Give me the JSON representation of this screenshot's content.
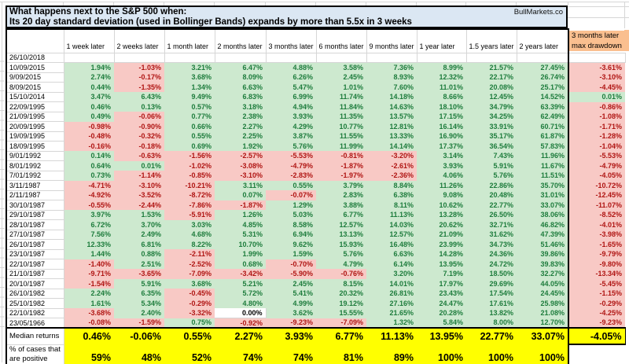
{
  "title": {
    "line1": "What happens next to the S&P 500 when:",
    "line2": "Its 20 day standard deviation (used in Bollinger Bands) expands by more than 5.5x in 3 weeks",
    "brand": "BullMarkets.co"
  },
  "table": {
    "columns": [
      "1 week later",
      "2 weeks later",
      "1 month later",
      "2 months later",
      "3 months later",
      "6 months later",
      "9 months later",
      "1 year later",
      "1.5 years later",
      "2 years later"
    ],
    "drawdown_header_lines": [
      "3 months later",
      "max drawdown"
    ],
    "rows": [
      {
        "date": "26/10/2018",
        "values": [
          "",
          "",
          "",
          "",
          "",
          "",
          "",
          "",
          "",
          ""
        ],
        "drawdown": ""
      },
      {
        "date": "10/09/2015",
        "values": [
          "1.94%",
          "-1.03%",
          "3.21%",
          "6.47%",
          "4.88%",
          "3.58%",
          "7.36%",
          "8.99%",
          "21.57%",
          "27.45%"
        ],
        "drawdown": "-3.61%"
      },
      {
        "date": "9/09/2015",
        "values": [
          "2.74%",
          "-0.17%",
          "3.68%",
          "8.09%",
          "6.26%",
          "2.45%",
          "8.93%",
          "12.32%",
          "22.17%",
          "26.74%"
        ],
        "drawdown": "-3.10%"
      },
      {
        "date": "8/09/2015",
        "values": [
          "0.44%",
          "-1.35%",
          "1.34%",
          "6.63%",
          "5.47%",
          "1.01%",
          "7.60%",
          "11.01%",
          "20.08%",
          "25.17%"
        ],
        "drawdown": "-4.45%"
      },
      {
        "date": "15/10/2014",
        "values": [
          "3.47%",
          "6.43%",
          "9.49%",
          "6.83%",
          "6.99%",
          "11.74%",
          "14.18%",
          "8.66%",
          "12.45%",
          "14.52%"
        ],
        "drawdown": "0.01%"
      },
      {
        "date": "22/09/1995",
        "values": [
          "0.46%",
          "0.13%",
          "0.57%",
          "3.18%",
          "4.94%",
          "11.84%",
          "14.63%",
          "18.10%",
          "34.79%",
          "63.39%"
        ],
        "drawdown": "-0.86%"
      },
      {
        "date": "21/09/1995",
        "values": [
          "0.49%",
          "-0.06%",
          "0.77%",
          "2.38%",
          "3.93%",
          "11.35%",
          "13.57%",
          "17.15%",
          "34.25%",
          "62.49%"
        ],
        "drawdown": "-1.08%"
      },
      {
        "date": "20/09/1995",
        "values": [
          "-0.98%",
          "-0.90%",
          "0.66%",
          "2.27%",
          "4.29%",
          "10.77%",
          "12.81%",
          "16.14%",
          "33.91%",
          "60.71%"
        ],
        "drawdown": "-1.71%"
      },
      {
        "date": "19/09/1995",
        "values": [
          "-0.48%",
          "-0.32%",
          "0.55%",
          "2.25%",
          "3.87%",
          "11.55%",
          "13.33%",
          "16.90%",
          "35.17%",
          "61.87%"
        ],
        "drawdown": "-1.28%"
      },
      {
        "date": "18/09/1995",
        "values": [
          "-0.16%",
          "-0.18%",
          "0.69%",
          "1.92%",
          "5.76%",
          "11.99%",
          "14.14%",
          "17.37%",
          "36.54%",
          "57.83%"
        ],
        "drawdown": "-1.04%"
      },
      {
        "date": "9/01/1992",
        "values": [
          "0.14%",
          "-0.63%",
          "-1.56%",
          "-2.57%",
          "-5.53%",
          "-0.81%",
          "-3.20%",
          "3.14%",
          "7.43%",
          "11.96%"
        ],
        "drawdown": "-5.53%"
      },
      {
        "date": "8/01/1992",
        "values": [
          "0.64%",
          "0.01%",
          "-1.02%",
          "-3.08%",
          "-4.79%",
          "-1.87%",
          "-2.61%",
          "3.93%",
          "5.91%",
          "11.67%"
        ],
        "drawdown": "-4.79%"
      },
      {
        "date": "7/01/1992",
        "values": [
          "0.73%",
          "-1.14%",
          "-0.85%",
          "-3.10%",
          "-2.83%",
          "-1.97%",
          "-2.36%",
          "4.06%",
          "5.76%",
          "11.51%"
        ],
        "drawdown": "-4.05%"
      },
      {
        "date": "3/11/1987",
        "values": [
          "-4.71%",
          "-3.10%",
          "-10.21%",
          "3.11%",
          "0.55%",
          "3.79%",
          "8.84%",
          "11.26%",
          "22.86%",
          "35.70%"
        ],
        "drawdown": "-10.72%"
      },
      {
        "date": "2/11/1987",
        "values": [
          "-4.92%",
          "-3.52%",
          "-8.72%",
          "0.07%",
          "-0.07%",
          "2.83%",
          "6.38%",
          "9.08%",
          "20.48%",
          "31.01%"
        ],
        "drawdown": "-12.45%"
      },
      {
        "date": "30/10/1987",
        "values": [
          "-0.55%",
          "-2.44%",
          "-7.86%",
          "-1.87%",
          "1.29%",
          "3.88%",
          "8.11%",
          "10.62%",
          "22.77%",
          "33.07%"
        ],
        "drawdown": "-11.07%"
      },
      {
        "date": "29/10/1987",
        "values": [
          "3.97%",
          "1.53%",
          "-5.91%",
          "1.26%",
          "5.03%",
          "6.77%",
          "11.13%",
          "13.28%",
          "26.50%",
          "38.06%"
        ],
        "drawdown": "-8.52%"
      },
      {
        "date": "28/10/1987",
        "values": [
          "6.72%",
          "3.70%",
          "3.03%",
          "4.85%",
          "8.58%",
          "12.57%",
          "14.03%",
          "20.62%",
          "32.71%",
          "46.82%"
        ],
        "drawdown": "-4.01%"
      },
      {
        "date": "27/10/1987",
        "values": [
          "7.56%",
          "2.49%",
          "4.68%",
          "5.31%",
          "6.94%",
          "13.13%",
          "12.57%",
          "21.09%",
          "31.62%",
          "47.39%"
        ],
        "drawdown": "-3.98%"
      },
      {
        "date": "26/10/1987",
        "values": [
          "12.33%",
          "6.81%",
          "8.22%",
          "10.70%",
          "9.62%",
          "15.93%",
          "16.48%",
          "23.99%",
          "34.73%",
          "51.46%"
        ],
        "drawdown": "-1.65%"
      },
      {
        "date": "23/10/1987",
        "values": [
          "1.44%",
          "0.88%",
          "-2.11%",
          "1.99%",
          "1.59%",
          "5.76%",
          "6.63%",
          "14.28%",
          "24.36%",
          "39.86%"
        ],
        "drawdown": "-9.79%"
      },
      {
        "date": "22/10/1987",
        "values": [
          "-1.40%",
          "2.51%",
          "-2.52%",
          "0.68%",
          "-0.70%",
          "4.79%",
          "6.14%",
          "13.95%",
          "24.72%",
          "39.83%"
        ],
        "drawdown": "-9.80%"
      },
      {
        "date": "21/10/1987",
        "values": [
          "-9.71%",
          "-3.65%",
          "-7.09%",
          "-3.42%",
          "-5.90%",
          "-0.76%",
          "3.20%",
          "7.19%",
          "18.50%",
          "32.27%"
        ],
        "drawdown": "-13.34%"
      },
      {
        "date": "20/10/1987",
        "values": [
          "-1.54%",
          "5.91%",
          "3.68%",
          "5.21%",
          "2.45%",
          "8.15%",
          "14.01%",
          "17.97%",
          "29.69%",
          "44.05%"
        ],
        "drawdown": "-5.45%"
      },
      {
        "date": "26/10/1982",
        "values": [
          "2.24%",
          "6.35%",
          "-0.45%",
          "5.72%",
          "5.41%",
          "20.32%",
          "26.81%",
          "23.43%",
          "17.54%",
          "24.45%"
        ],
        "drawdown": "-1.15%"
      },
      {
        "date": "25/10/1982",
        "values": [
          "1.61%",
          "5.34%",
          "-0.29%",
          "4.80%",
          "4.99%",
          "19.12%",
          "27.16%",
          "24.47%",
          "17.61%",
          "25.98%"
        ],
        "drawdown": "-0.29%"
      },
      {
        "date": "22/10/1982",
        "values": [
          "-3.68%",
          "2.40%",
          "-3.32%",
          "0.00%",
          "3.62%",
          "15.55%",
          "21.65%",
          "20.28%",
          "13.82%",
          "21.08%"
        ],
        "drawdown": "-4.25%"
      },
      {
        "date": "23/05/1966",
        "values": [
          "-0.08%",
          "-1.59%",
          "0.75%",
          "-0.92%",
          "-9.23%",
          "-7.09%",
          "1.32%",
          "5.84%",
          "8.00%",
          "12.70%"
        ],
        "drawdown": "-9.23%"
      }
    ],
    "median": {
      "label": "Median returns",
      "values": [
        "0.46%",
        "-0.06%",
        "0.55%",
        "2.27%",
        "3.93%",
        "6.77%",
        "11.13%",
        "13.95%",
        "22.77%",
        "33.07%"
      ],
      "drawdown": "-4.05%"
    },
    "positive": {
      "label_lines": [
        "% of cases that",
        "are positive"
      ],
      "values": [
        "59%",
        "48%",
        "52%",
        "74%",
        "74%",
        "81%",
        "89%",
        "100%",
        "100%",
        "100%"
      ],
      "drawdown": ""
    }
  },
  "colors": {
    "title_bg": "#dbe7f3",
    "header_accent_bg": "#fabf8f",
    "positive_bg": "#cde9cf",
    "positive_text": "#1d7c3c",
    "negative_bg": "#f8c9c5",
    "negative_text": "#b01513",
    "summary_bg": "#ffff00",
    "grid_line": "#d6d6d6",
    "table_border": "#000000"
  }
}
